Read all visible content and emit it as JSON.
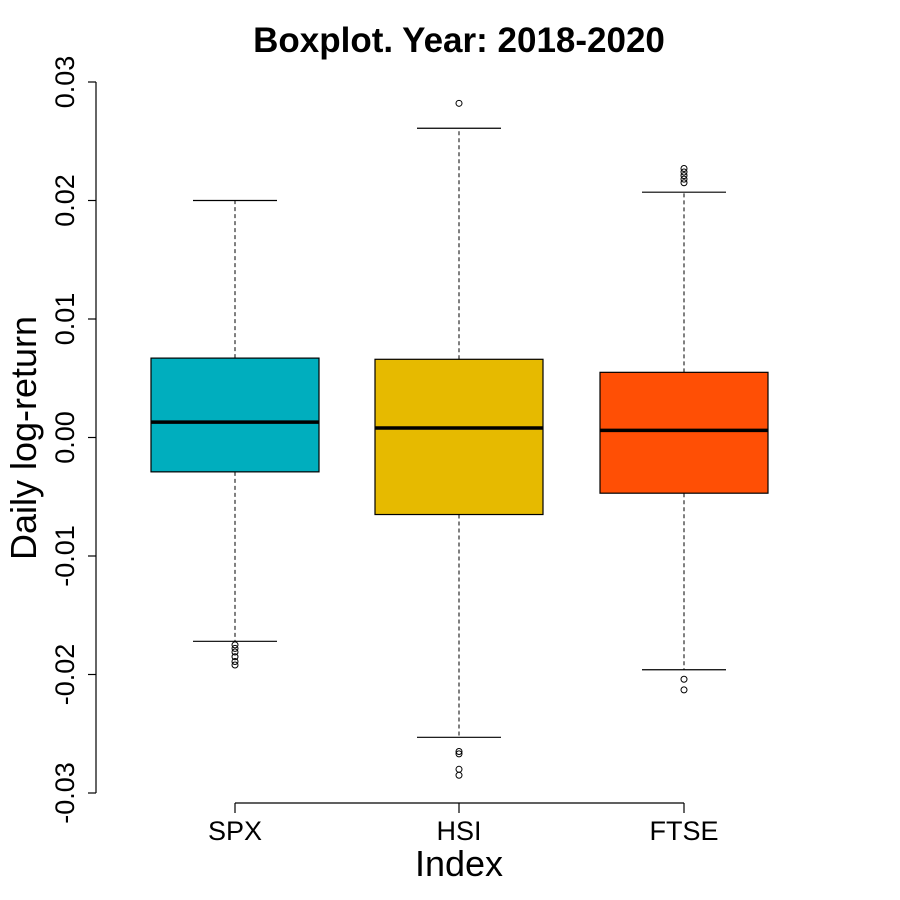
{
  "chart_data": {
    "type": "boxplot",
    "title": "Boxplot. Year: 2018-2020",
    "xlabel": "Index",
    "ylabel": "Daily log-return",
    "ylim": [
      -0.03,
      0.03
    ],
    "yticks": [
      "-0.03",
      "-0.02",
      "-0.01",
      "0.00",
      "0.01",
      "0.02",
      "0.03"
    ],
    "ytick_values": [
      -0.03,
      -0.02,
      -0.01,
      0.0,
      0.01,
      0.02,
      0.03
    ],
    "grid": false,
    "categories": [
      "SPX",
      "HSI",
      "FTSE"
    ],
    "series": [
      {
        "color": "#00AEBE",
        "whisker_low": -0.0172,
        "q1": -0.0029,
        "median": 0.0013,
        "q3": 0.0067,
        "whisker_high": 0.02,
        "outliers": [
          -0.0175,
          -0.0178,
          -0.0181,
          -0.0185,
          -0.0189,
          -0.0192
        ]
      },
      {
        "color": "#E6BA00",
        "whisker_low": -0.0253,
        "q1": -0.0065,
        "median": 0.0008,
        "q3": 0.0066,
        "whisker_high": 0.0261,
        "outliers": [
          0.0282,
          -0.0265,
          -0.0267,
          -0.028,
          -0.0285
        ]
      },
      {
        "color": "#FF4F05",
        "whisker_low": -0.0196,
        "q1": -0.0047,
        "median": 0.0006,
        "q3": 0.0055,
        "whisker_high": 0.0207,
        "outliers": [
          0.0227,
          0.0224,
          0.0221,
          0.0218,
          0.0215,
          -0.0204,
          -0.0213
        ]
      }
    ]
  }
}
